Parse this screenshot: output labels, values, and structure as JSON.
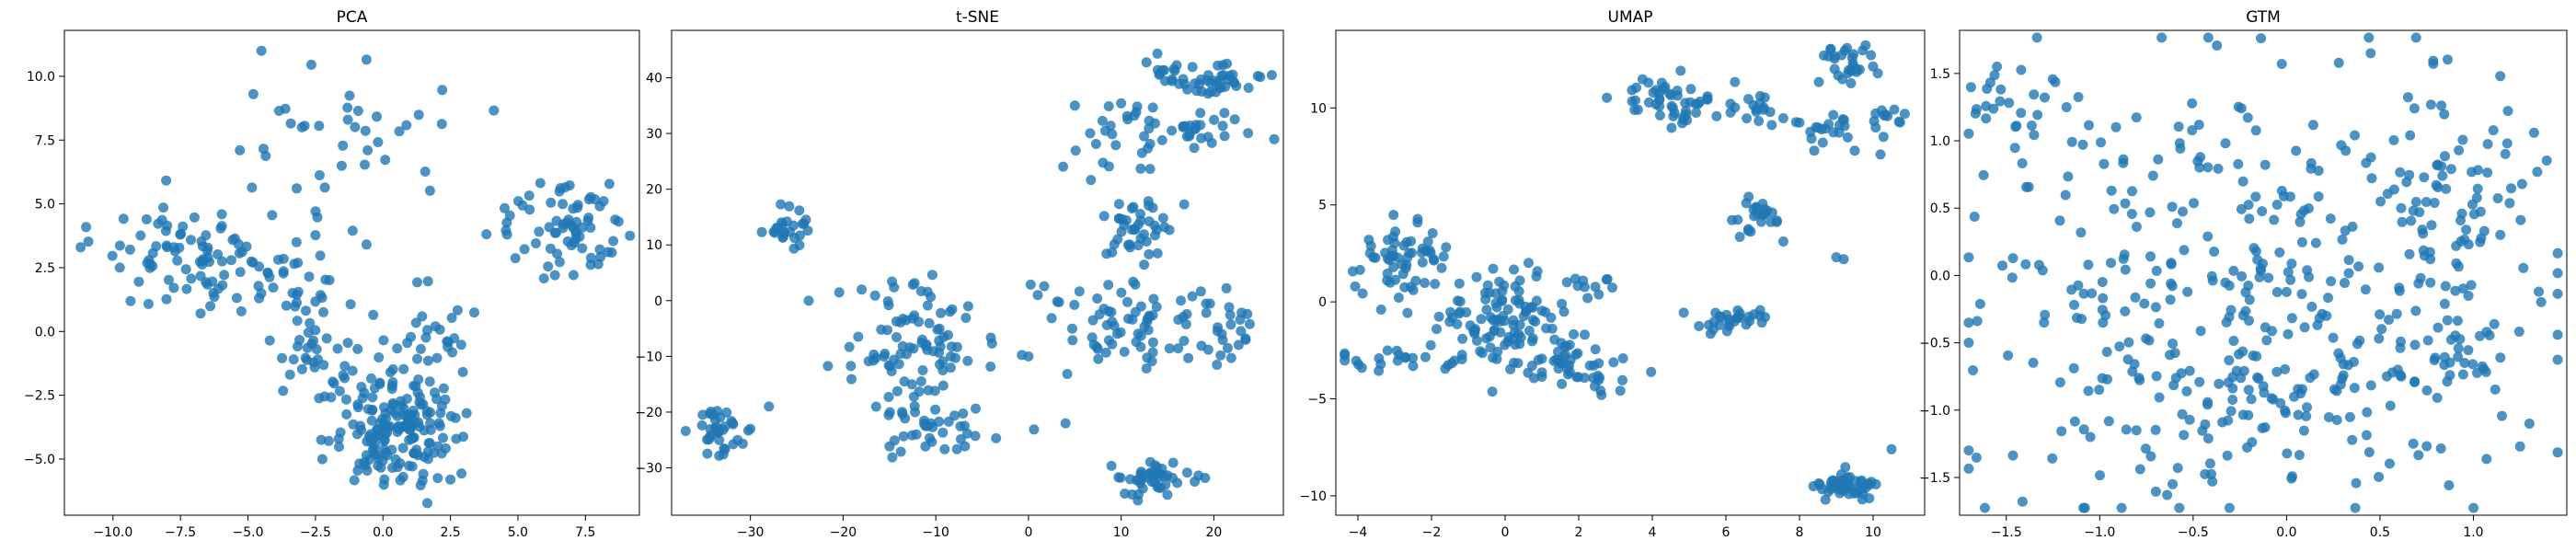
{
  "style": {
    "point_color": "#1f77b4",
    "point_alpha": 0.8
  },
  "chart_data": [
    {
      "type": "scatter",
      "title": "PCA",
      "xlabel": "",
      "ylabel": "",
      "xlim": [
        -11.8,
        9.5
      ],
      "ylim": [
        -7.2,
        11.8
      ],
      "xticks": [
        -10.0,
        -7.5,
        -5.0,
        -2.5,
        0.0,
        2.5,
        5.0,
        7.5
      ],
      "yticks": [
        -5.0,
        -2.5,
        0.0,
        2.5,
        5.0,
        7.5,
        10.0
      ],
      "x_tick_labels": [
        "−10.0",
        "−7.5",
        "−5.0",
        "−2.5",
        "0.0",
        "2.5",
        "5.0",
        "7.5"
      ],
      "y_tick_labels": [
        "−5.0",
        "−2.5",
        "0.0",
        "2.5",
        "5.0",
        "7.5",
        "10.0"
      ],
      "grid": false,
      "legend": "none",
      "clusters": [
        {
          "cx": -7.2,
          "cy": 2.9,
          "sx": 1.5,
          "sy": 1.0,
          "n": 80
        },
        {
          "cx": -3.5,
          "cy": 2.2,
          "sx": 1.3,
          "sy": 1.1,
          "n": 40
        },
        {
          "cx": 0.5,
          "cy": -3.8,
          "sx": 1.2,
          "sy": 1.2,
          "n": 170
        },
        {
          "cx": -2.0,
          "cy": -1.2,
          "sx": 1.0,
          "sy": 1.0,
          "n": 35
        },
        {
          "cx": 2.0,
          "cy": 0.0,
          "sx": 0.8,
          "sy": 1.0,
          "n": 25
        },
        {
          "cx": -1.0,
          "cy": 7.8,
          "sx": 1.6,
          "sy": 1.3,
          "n": 35
        },
        {
          "cx": 7.2,
          "cy": 4.0,
          "sx": 0.8,
          "sy": 0.9,
          "n": 60
        },
        {
          "cx": 4.8,
          "cy": 4.5,
          "sx": 0.6,
          "sy": 0.7,
          "n": 10
        }
      ],
      "points": [
        [
          -11.2,
          3.3
        ],
        [
          -4.5,
          11.0
        ],
        [
          -4.8,
          9.3
        ],
        [
          -5.3,
          7.1
        ],
        [
          -3.0,
          8.0
        ],
        [
          -3.2,
          3.5
        ],
        [
          2.5,
          -5.8
        ],
        [
          3.1,
          -3.2
        ],
        [
          4.6,
          3.8
        ]
      ]
    },
    {
      "type": "scatter",
      "title": "t-SNE",
      "xlabel": "",
      "ylabel": "",
      "xlim": [
        -38.5,
        27.5
      ],
      "ylim": [
        -38.5,
        48.5
      ],
      "xticks": [
        -30,
        -20,
        -10,
        0,
        10,
        20
      ],
      "yticks": [
        -30,
        -20,
        -10,
        0,
        10,
        20,
        30,
        40
      ],
      "x_tick_labels": [
        "−30",
        "−20",
        "−10",
        "0",
        "10",
        "20"
      ],
      "y_tick_labels": [
        "−30",
        "−20",
        "−10",
        "0",
        "10",
        "20",
        "30",
        "40"
      ],
      "grid": false,
      "legend": "none",
      "clusters": [
        {
          "cx": -33.0,
          "cy": -23.5,
          "sx": 1.5,
          "sy": 2.0,
          "n": 35
        },
        {
          "cx": -26.0,
          "cy": 13.5,
          "sx": 2.0,
          "sy": 1.8,
          "n": 25
        },
        {
          "cx": -11.0,
          "cy": -7.0,
          "sx": 4.5,
          "sy": 5.0,
          "n": 90
        },
        {
          "cx": -11.0,
          "cy": -23.0,
          "sx": 3.5,
          "sy": 3.0,
          "n": 40
        },
        {
          "cx": 13.0,
          "cy": -5.0,
          "sx": 5.5,
          "sy": 5.0,
          "n": 80
        },
        {
          "cx": 13.5,
          "cy": -32.0,
          "sx": 2.0,
          "sy": 2.0,
          "n": 45
        },
        {
          "cx": 12.0,
          "cy": 13.0,
          "sx": 2.0,
          "sy": 3.0,
          "n": 40
        },
        {
          "cx": 10.0,
          "cy": 28.0,
          "sx": 3.0,
          "sy": 5.0,
          "n": 30
        },
        {
          "cx": 20.5,
          "cy": 39.5,
          "sx": 2.0,
          "sy": 1.5,
          "n": 35
        },
        {
          "cx": 15.0,
          "cy": 42.0,
          "sx": 1.5,
          "sy": 1.5,
          "n": 15
        },
        {
          "cx": 18.5,
          "cy": 30.5,
          "sx": 2.5,
          "sy": 1.2,
          "n": 25
        },
        {
          "cx": 23.0,
          "cy": -5.0,
          "sx": 1.5,
          "sy": 3.0,
          "n": 12
        }
      ],
      "points": [
        [
          -28.0,
          -19.0
        ],
        [
          -30.0,
          -23.0
        ],
        [
          5.0,
          35.0
        ],
        [
          4.0,
          -22.0
        ],
        [
          -18.0,
          2.0
        ],
        [
          0.0,
          -10.0
        ],
        [
          1.0,
          1.0
        ]
      ]
    },
    {
      "type": "scatter",
      "title": "UMAP",
      "xlabel": "",
      "ylabel": "",
      "xlim": [
        -4.6,
        11.4
      ],
      "ylim": [
        -11.0,
        14.0
      ],
      "xticks": [
        -4,
        -2,
        0,
        2,
        4,
        6,
        8,
        10
      ],
      "yticks": [
        -10,
        -5,
        0,
        5,
        10
      ],
      "x_tick_labels": [
        "−4",
        "−2",
        "0",
        "2",
        "4",
        "6",
        "8",
        "10"
      ],
      "y_tick_labels": [
        "−10",
        "−5",
        "0",
        "5",
        "10"
      ],
      "grid": false,
      "legend": "none",
      "clusters": [
        {
          "cx": -2.8,
          "cy": 2.0,
          "sx": 0.6,
          "sy": 1.2,
          "n": 60
        },
        {
          "cx": 0.0,
          "cy": -1.0,
          "sx": 0.8,
          "sy": 1.3,
          "n": 110
        },
        {
          "cx": 2.2,
          "cy": -3.5,
          "sx": 0.7,
          "sy": 0.7,
          "n": 40
        },
        {
          "cx": -2.5,
          "cy": -3.0,
          "sx": 1.2,
          "sy": 0.3,
          "n": 25
        },
        {
          "cx": 2.5,
          "cy": 0.8,
          "sx": 0.5,
          "sy": 0.5,
          "n": 10
        },
        {
          "cx": 4.3,
          "cy": 10.6,
          "sx": 0.6,
          "sy": 0.8,
          "n": 45
        },
        {
          "cx": 6.8,
          "cy": 4.4,
          "sx": 0.3,
          "sy": 0.5,
          "n": 25
        },
        {
          "cx": 6.2,
          "cy": -1.0,
          "sx": 0.5,
          "sy": 0.3,
          "n": 30
        },
        {
          "cx": 9.2,
          "cy": -9.5,
          "sx": 0.5,
          "sy": 0.3,
          "n": 45
        },
        {
          "cx": 9.4,
          "cy": 12.3,
          "sx": 0.5,
          "sy": 0.5,
          "n": 30
        },
        {
          "cx": 10.3,
          "cy": 9.5,
          "sx": 0.3,
          "sy": 0.5,
          "n": 12
        },
        {
          "cx": 8.8,
          "cy": 9.0,
          "sx": 0.4,
          "sy": 0.6,
          "n": 18
        },
        {
          "cx": 6.5,
          "cy": 10.2,
          "sx": 0.6,
          "sy": 0.5,
          "n": 20
        }
      ],
      "points": [
        [
          9.0,
          2.3
        ],
        [
          9.2,
          2.2
        ],
        [
          10.5,
          -7.6
        ],
        [
          8.4,
          7.8
        ],
        [
          5.5,
          10.6
        ],
        [
          9.5,
          7.8
        ],
        [
          10.2,
          7.6
        ]
      ]
    },
    {
      "type": "scatter",
      "title": "GTM",
      "xlabel": "",
      "ylabel": "",
      "xlim": [
        -1.75,
        1.5
      ],
      "ylim": [
        -1.78,
        1.82
      ],
      "xticks": [
        -1.5,
        -1.0,
        -0.5,
        0.0,
        0.5,
        1.0
      ],
      "yticks": [
        -1.5,
        -1.0,
        -0.5,
        0.0,
        0.5,
        1.0,
        1.5
      ],
      "x_tick_labels": [
        "−1.5",
        "−1.0",
        "−0.5",
        "0.0",
        "0.5",
        "1.0"
      ],
      "y_tick_labels": [
        "−1.5",
        "−1.0",
        "−0.5",
        "0.0",
        "0.5",
        "1.0",
        "1.5"
      ],
      "grid": false,
      "legend": "none",
      "clusters": [
        {
          "cx": -0.1,
          "cy": 0.0,
          "sx": 0.75,
          "sy": 0.85,
          "n": 360
        },
        {
          "cx": 0.9,
          "cy": 0.6,
          "sx": 0.18,
          "sy": 0.4,
          "n": 50
        },
        {
          "cx": -0.3,
          "cy": -1.0,
          "sx": 0.4,
          "sy": 0.25,
          "n": 60
        },
        {
          "cx": -1.4,
          "cy": 1.2,
          "sx": 0.15,
          "sy": 0.3,
          "n": 25
        },
        {
          "cx": 0.9,
          "cy": -0.65,
          "sx": 0.12,
          "sy": 0.12,
          "n": 25
        }
      ],
      "points": [
        [
          1.35,
          -0.12
        ],
        [
          1.3,
          -1.1
        ],
        [
          1.25,
          -1.27
        ],
        [
          0.45,
          1.65
        ],
        [
          -1.55,
          1.55
        ]
      ]
    }
  ]
}
